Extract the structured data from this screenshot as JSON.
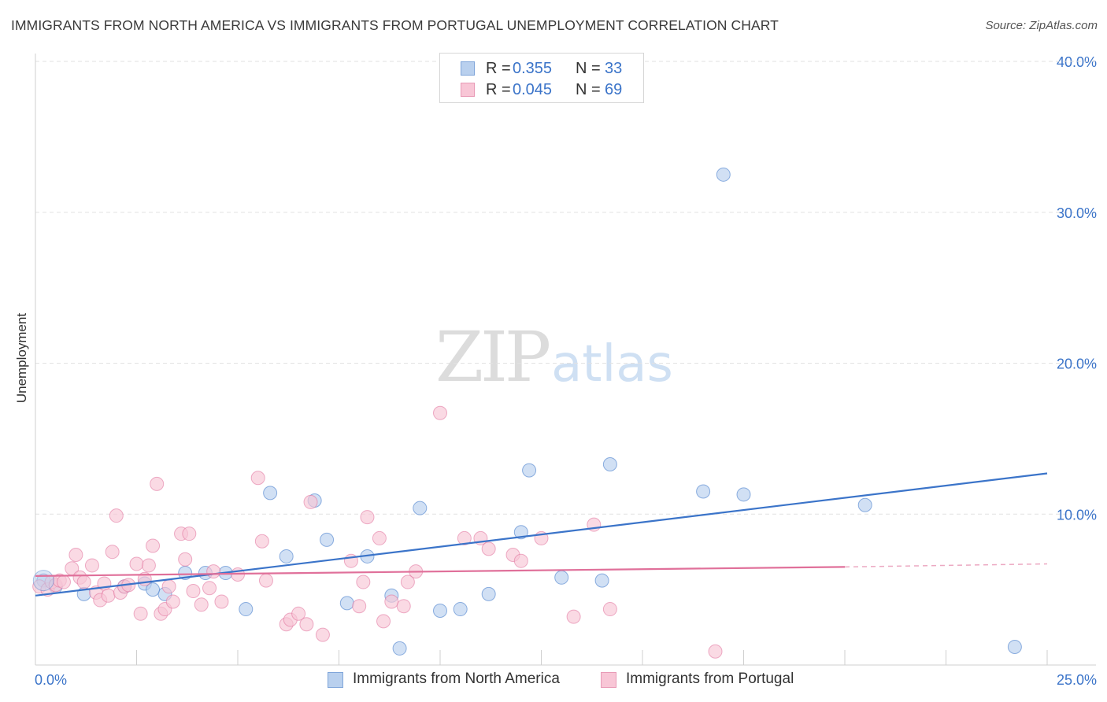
{
  "header": {
    "title": "IMMIGRANTS FROM NORTH AMERICA VS IMMIGRANTS FROM PORTUGAL UNEMPLOYMENT CORRELATION CHART",
    "source": "Source: ZipAtlas.com"
  },
  "watermark": {
    "zip": "ZIP",
    "atlas": "atlas"
  },
  "legend": {
    "rows": [
      {
        "r_label": "R =",
        "r_value": "0.355",
        "n_label": "N =",
        "n_value": "33"
      },
      {
        "r_label": "R =",
        "r_value": "0.045",
        "n_label": "N =",
        "n_value": "69"
      }
    ]
  },
  "chart_data": {
    "type": "scatter",
    "title": "IMMIGRANTS FROM NORTH AMERICA VS IMMIGRANTS FROM PORTUGAL UNEMPLOYMENT CORRELATION CHART",
    "xlabel": "",
    "ylabel": "Unemployment",
    "xlim": [
      0,
      25
    ],
    "ylim": [
      0,
      40
    ],
    "x_tick_labels": [
      "0.0%",
      "25.0%"
    ],
    "y_ticks": [
      10,
      20,
      30,
      40
    ],
    "y_tick_labels": [
      "10.0%",
      "20.0%",
      "30.0%",
      "40.0%"
    ],
    "grid": true,
    "legend_position": "top-center",
    "series": [
      {
        "name": "Immigrants from North America",
        "color": "#3b74c9",
        "fill": "#b9d0ee",
        "r": "0.355",
        "n": "33",
        "trend": {
          "x": [
            0,
            25
          ],
          "y": [
            4.6,
            12.7
          ]
        },
        "points": [
          [
            0.2,
            5.6
          ],
          [
            1.2,
            4.7
          ],
          [
            2.2,
            5.2
          ],
          [
            2.7,
            5.4
          ],
          [
            3.2,
            4.7
          ],
          [
            3.7,
            6.1
          ],
          [
            4.2,
            6.1
          ],
          [
            4.7,
            6.1
          ],
          [
            5.2,
            3.7
          ],
          [
            5.8,
            11.4
          ],
          [
            6.2,
            7.2
          ],
          [
            6.9,
            10.9
          ],
          [
            7.2,
            8.3
          ],
          [
            7.7,
            4.1
          ],
          [
            8.2,
            7.2
          ],
          [
            8.8,
            4.6
          ],
          [
            9.0,
            1.1
          ],
          [
            9.5,
            10.4
          ],
          [
            10.0,
            3.6
          ],
          [
            10.5,
            3.7
          ],
          [
            11.2,
            4.7
          ],
          [
            12.0,
            8.8
          ],
          [
            12.2,
            12.9
          ],
          [
            13.0,
            5.8
          ],
          [
            14.0,
            5.6
          ],
          [
            14.2,
            13.3
          ],
          [
            16.5,
            11.5
          ],
          [
            17.0,
            32.5
          ],
          [
            17.5,
            11.3
          ],
          [
            20.5,
            10.6
          ],
          [
            24.2,
            1.2
          ],
          [
            0.5,
            5.2
          ],
          [
            2.9,
            5.0
          ]
        ]
      },
      {
        "name": "Immigrants from Portugal",
        "color": "#e0709a",
        "fill": "#f8c6d6",
        "r": "0.045",
        "n": "69",
        "trend": {
          "x": [
            0,
            20
          ],
          "y": [
            5.9,
            6.5
          ]
        },
        "trend_dashed": {
          "x": [
            20,
            25
          ],
          "y": [
            6.5,
            6.7
          ]
        },
        "points": [
          [
            0.1,
            5.2
          ],
          [
            0.3,
            5.0
          ],
          [
            0.4,
            5.5
          ],
          [
            0.5,
            5.3
          ],
          [
            0.6,
            5.6
          ],
          [
            0.7,
            5.5
          ],
          [
            0.9,
            6.4
          ],
          [
            1.0,
            7.3
          ],
          [
            1.1,
            5.8
          ],
          [
            1.2,
            5.5
          ],
          [
            1.4,
            6.6
          ],
          [
            1.5,
            4.8
          ],
          [
            1.6,
            4.3
          ],
          [
            1.7,
            5.4
          ],
          [
            1.8,
            4.6
          ],
          [
            1.9,
            7.5
          ],
          [
            2.0,
            9.9
          ],
          [
            2.1,
            4.8
          ],
          [
            2.2,
            5.2
          ],
          [
            2.3,
            5.3
          ],
          [
            2.5,
            6.7
          ],
          [
            2.6,
            3.4
          ],
          [
            2.7,
            5.7
          ],
          [
            2.8,
            6.6
          ],
          [
            2.9,
            7.9
          ],
          [
            3.0,
            12.0
          ],
          [
            3.1,
            3.4
          ],
          [
            3.2,
            3.7
          ],
          [
            3.3,
            5.2
          ],
          [
            3.4,
            4.2
          ],
          [
            3.6,
            8.7
          ],
          [
            3.7,
            7.0
          ],
          [
            3.8,
            8.7
          ],
          [
            3.9,
            4.9
          ],
          [
            4.1,
            4.0
          ],
          [
            4.3,
            5.1
          ],
          [
            4.4,
            6.2
          ],
          [
            4.6,
            4.2
          ],
          [
            5.0,
            6.0
          ],
          [
            5.5,
            12.4
          ],
          [
            5.6,
            8.2
          ],
          [
            5.7,
            5.6
          ],
          [
            6.2,
            2.7
          ],
          [
            6.3,
            3.0
          ],
          [
            6.5,
            3.4
          ],
          [
            6.7,
            2.7
          ],
          [
            6.8,
            10.8
          ],
          [
            7.1,
            2.0
          ],
          [
            7.8,
            6.9
          ],
          [
            8.0,
            3.9
          ],
          [
            8.1,
            5.5
          ],
          [
            8.2,
            9.8
          ],
          [
            8.5,
            8.4
          ],
          [
            8.6,
            2.9
          ],
          [
            8.8,
            4.2
          ],
          [
            9.1,
            3.9
          ],
          [
            9.2,
            5.5
          ],
          [
            9.4,
            6.2
          ],
          [
            10.0,
            16.7
          ],
          [
            10.6,
            8.4
          ],
          [
            11.0,
            8.4
          ],
          [
            11.2,
            7.7
          ],
          [
            11.8,
            7.3
          ],
          [
            12.0,
            6.9
          ],
          [
            12.5,
            8.4
          ],
          [
            13.3,
            3.2
          ],
          [
            13.8,
            9.3
          ],
          [
            14.2,
            3.7
          ],
          [
            16.8,
            0.9
          ]
        ]
      }
    ]
  }
}
